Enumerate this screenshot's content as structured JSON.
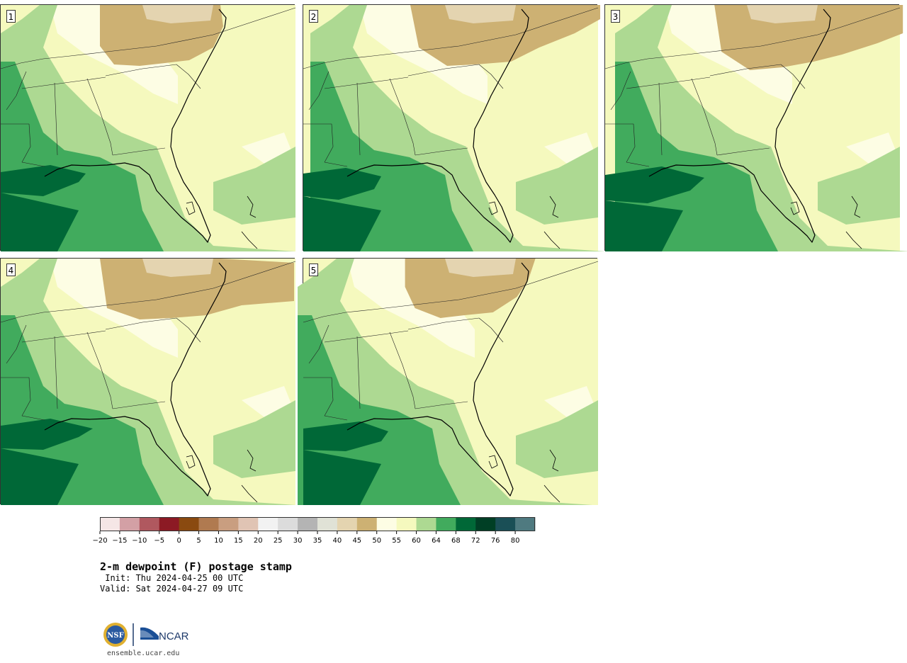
{
  "panels": [
    {
      "label": "1"
    },
    {
      "label": "2"
    },
    {
      "label": "3"
    },
    {
      "label": "4"
    },
    {
      "label": "5"
    }
  ],
  "colorbar": {
    "colors": [
      "#f5e6e6",
      "#d3a0a5",
      "#b0585f",
      "#8c1a24",
      "#8a4a10",
      "#b07a50",
      "#c99e80",
      "#e0c4b4",
      "#f2f2f2",
      "#dcdcdc",
      "#b4b4b4",
      "#e0e2d6",
      "#e4d4b0",
      "#cdb173",
      "#fdfde4",
      "#f5f9be",
      "#add992",
      "#41ab5d",
      "#006837",
      "#003f25",
      "#1a4f56",
      "#4f7a80"
    ],
    "tick_labels": [
      "−20",
      "−15",
      "−10",
      "−5",
      "0",
      "5",
      "10",
      "15",
      "20",
      "25",
      "30",
      "35",
      "40",
      "45",
      "50",
      "55",
      "60",
      "64",
      "68",
      "72",
      "76",
      "80"
    ]
  },
  "title": "2-m dewpoint (F) postage stamp",
  "init": " Init: Thu 2024-04-25 00 UTC",
  "valid": "Valid: Sat 2024-04-27 09 UTC",
  "logos": {
    "nsf": "NSF",
    "ncar": "NCAR"
  },
  "footer": "ensemble.ucar.edu"
}
